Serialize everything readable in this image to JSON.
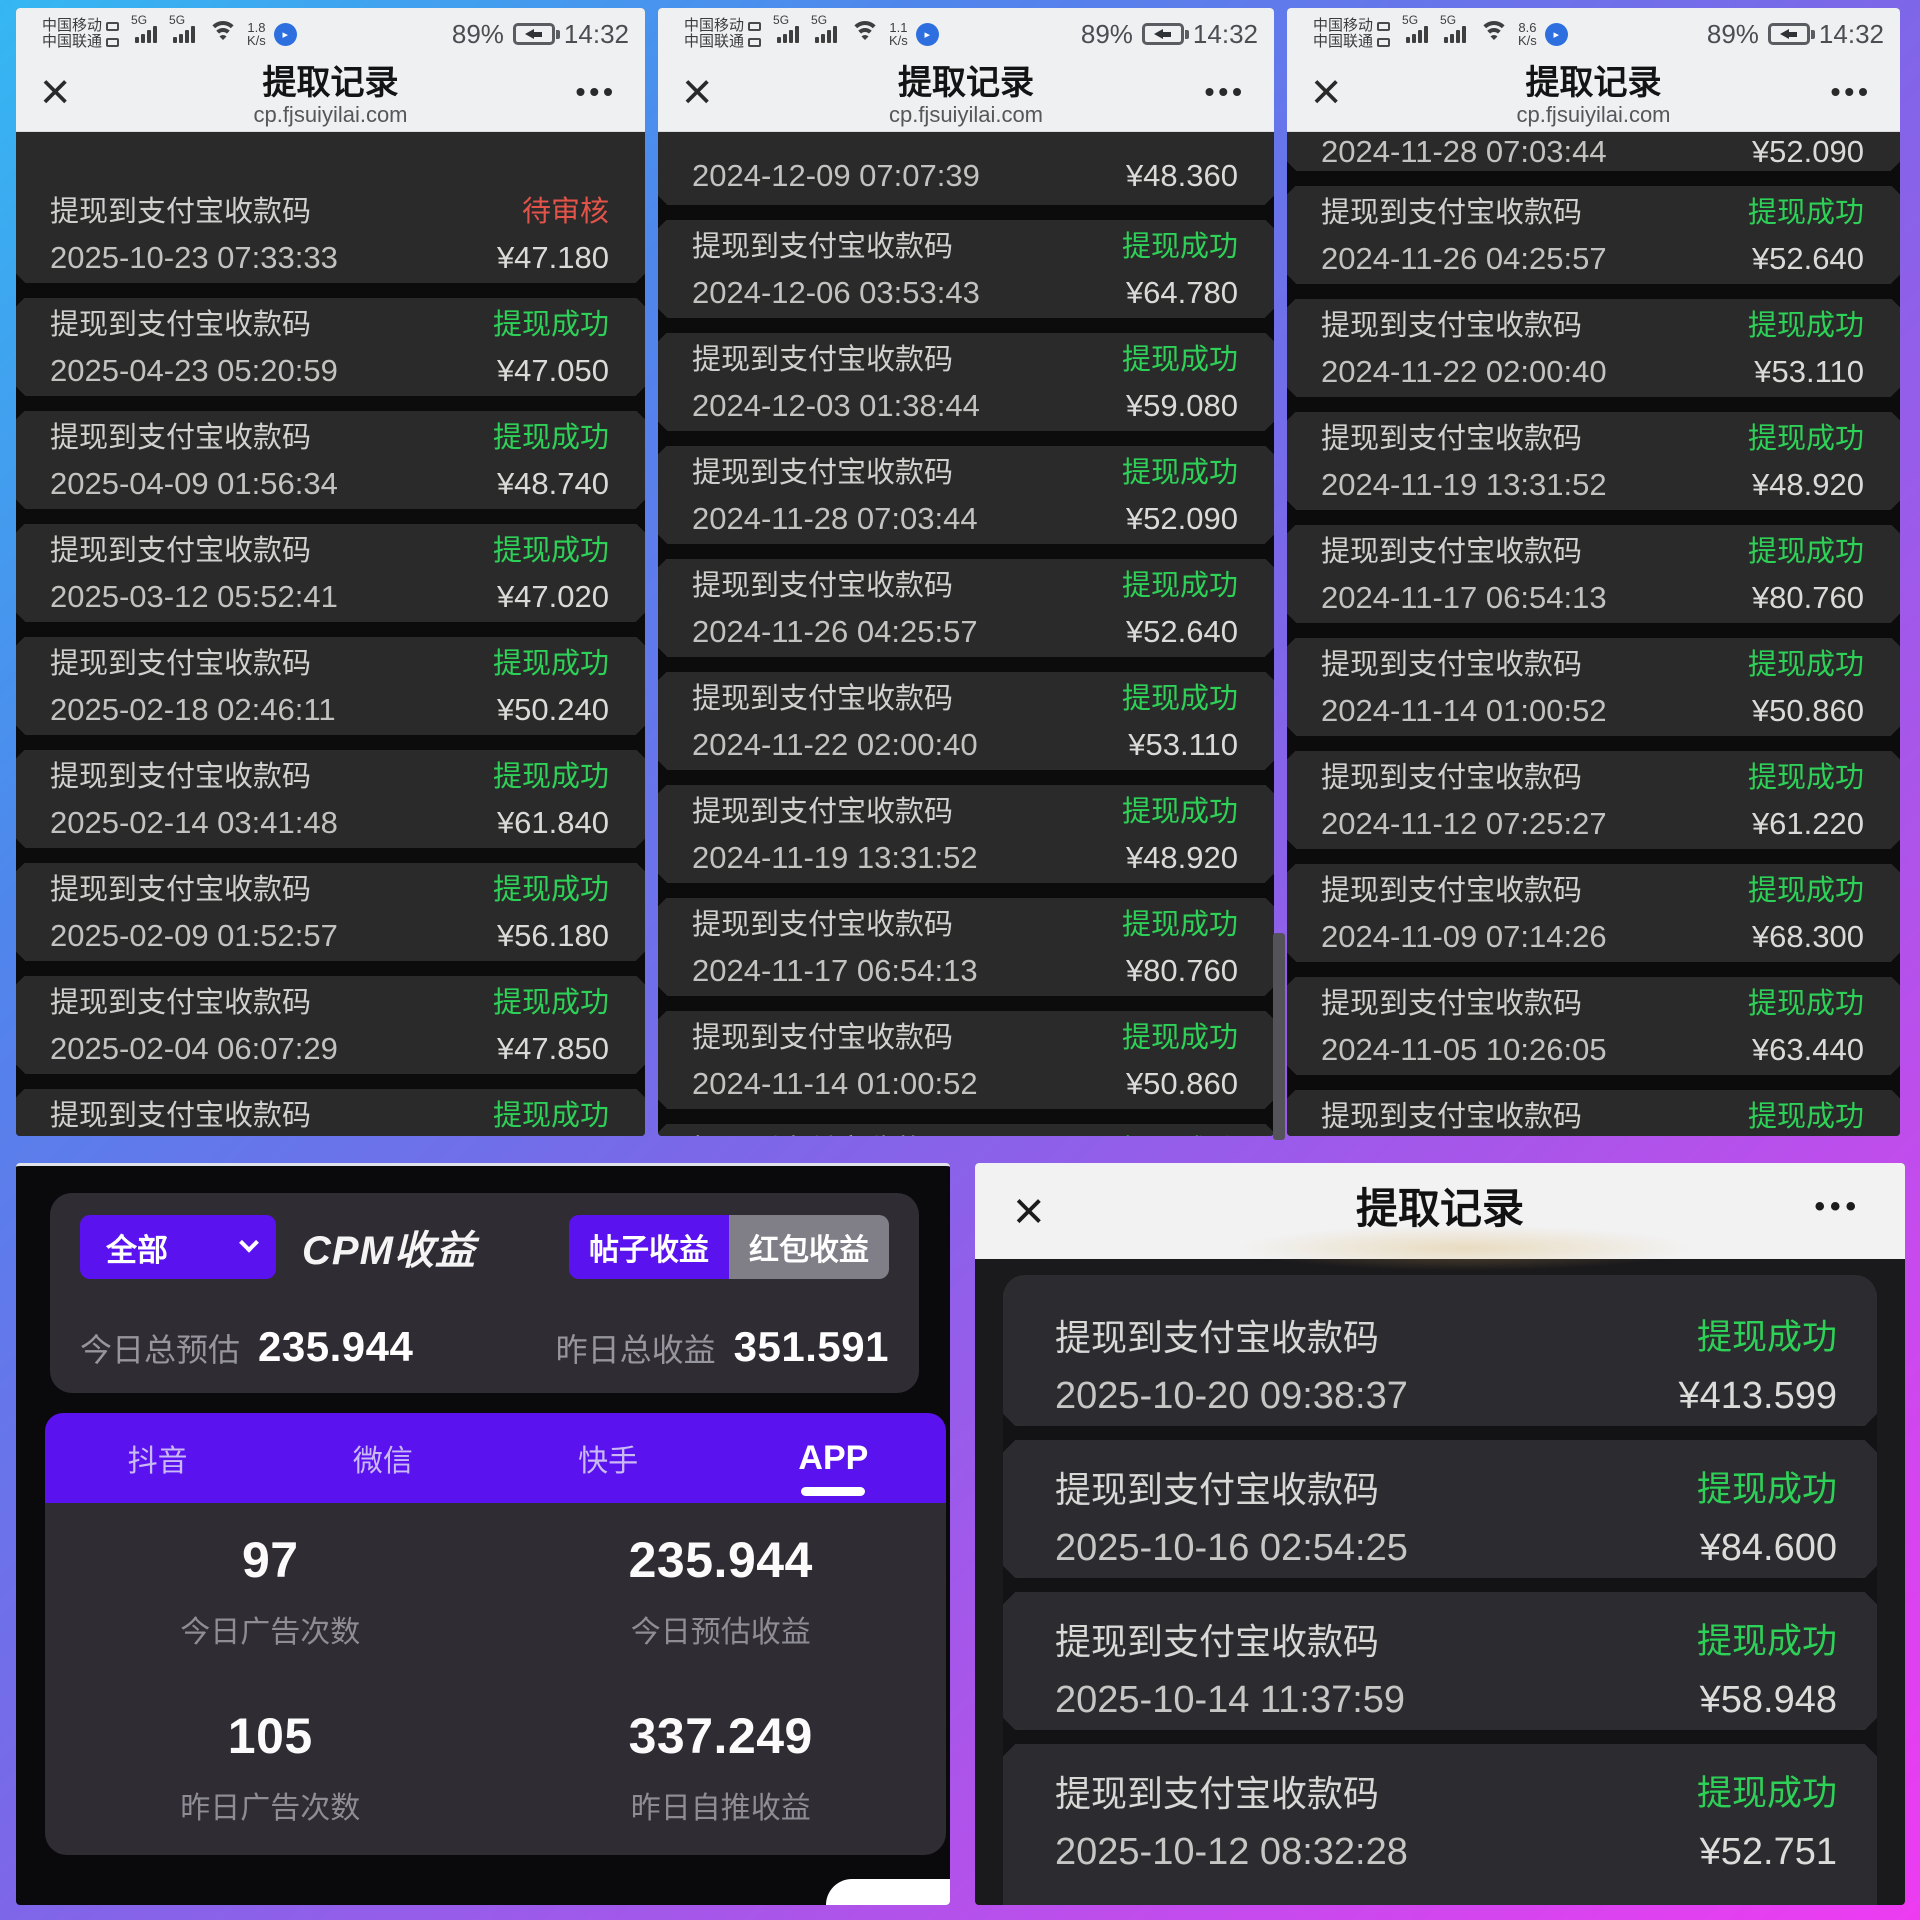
{
  "shared": {
    "carrier1": "中国移动",
    "carrier2": "中国联通",
    "network_badge": "5G",
    "speed_unit": "K/s",
    "battery_percent": "89%",
    "time": "14:32",
    "page_title": "提取记录",
    "page_url": "cp.fjsuiyilai.com",
    "row_title": "提现到支付宝收款码",
    "status_success": "提现成功",
    "status_pending": "待审核",
    "close_glyph": "×",
    "more_glyph": "•••"
  },
  "colors": {
    "accent_purple": "#5a13ef",
    "success_green": "#2ed157",
    "pending_red": "#e25349",
    "card_dark": "#2a2a2a"
  },
  "top_panels": [
    {
      "speed": "1.8",
      "rows": [
        {
          "date": "2025-10-23 07:33:33",
          "amount": "¥47.180",
          "status": "待审核",
          "state": "pending"
        },
        {
          "date": "2025-04-23 05:20:59",
          "amount": "¥47.050",
          "status": "提现成功",
          "state": "success"
        },
        {
          "date": "2025-04-09 01:56:34",
          "amount": "¥48.740",
          "status": "提现成功",
          "state": "success"
        },
        {
          "date": "2025-03-12 05:52:41",
          "amount": "¥47.020",
          "status": "提现成功",
          "state": "success"
        },
        {
          "date": "2025-02-18 02:46:11",
          "amount": "¥50.240",
          "status": "提现成功",
          "state": "success"
        },
        {
          "date": "2025-02-14 03:41:48",
          "amount": "¥61.840",
          "status": "提现成功",
          "state": "success"
        },
        {
          "date": "2025-02-09 01:52:57",
          "amount": "¥56.180",
          "status": "提现成功",
          "state": "success"
        },
        {
          "date": "2025-02-04 06:07:29",
          "amount": "¥47.850",
          "status": "提现成功",
          "state": "success"
        },
        {
          "date": "",
          "amount": "",
          "status": "提现成功",
          "state": "success",
          "clip": "bottom"
        }
      ]
    },
    {
      "speed": "1.1",
      "rows": [
        {
          "date": "2024-12-09 07:07:39",
          "amount": "¥48.360",
          "status": "提现成功",
          "state": "success",
          "clip": "top"
        },
        {
          "date": "2024-12-06 03:53:43",
          "amount": "¥64.780",
          "status": "提现成功",
          "state": "success"
        },
        {
          "date": "2024-12-03 01:38:44",
          "amount": "¥59.080",
          "status": "提现成功",
          "state": "success"
        },
        {
          "date": "2024-11-28 07:03:44",
          "amount": "¥52.090",
          "status": "提现成功",
          "state": "success"
        },
        {
          "date": "2024-11-26 04:25:57",
          "amount": "¥52.640",
          "status": "提现成功",
          "state": "success"
        },
        {
          "date": "2024-11-22 02:00:40",
          "amount": "¥53.110",
          "status": "提现成功",
          "state": "success"
        },
        {
          "date": "2024-11-19 13:31:52",
          "amount": "¥48.920",
          "status": "提现成功",
          "state": "success"
        },
        {
          "date": "2024-11-17 06:54:13",
          "amount": "¥80.760",
          "status": "提现成功",
          "state": "success"
        },
        {
          "date": "2024-11-14 01:00:52",
          "amount": "¥50.860",
          "status": "提现成功",
          "state": "success"
        },
        {
          "date": "",
          "amount": "",
          "status": "提现成功",
          "state": "success",
          "clip": "bottom"
        }
      ]
    },
    {
      "speed": "8.6",
      "rows": [
        {
          "date": "2024-11-28 07:03:44",
          "amount": "¥52.090",
          "status": "提现成功",
          "state": "success",
          "clip": "half"
        },
        {
          "date": "2024-11-26 04:25:57",
          "amount": "¥52.640",
          "status": "提现成功",
          "state": "success"
        },
        {
          "date": "2024-11-22 02:00:40",
          "amount": "¥53.110",
          "status": "提现成功",
          "state": "success"
        },
        {
          "date": "2024-11-19 13:31:52",
          "amount": "¥48.920",
          "status": "提现成功",
          "state": "success"
        },
        {
          "date": "2024-11-17 06:54:13",
          "amount": "¥80.760",
          "status": "提现成功",
          "state": "success"
        },
        {
          "date": "2024-11-14 01:00:52",
          "amount": "¥50.860",
          "status": "提现成功",
          "state": "success"
        },
        {
          "date": "2024-11-12 07:25:27",
          "amount": "¥61.220",
          "status": "提现成功",
          "state": "success"
        },
        {
          "date": "2024-11-09 07:14:26",
          "amount": "¥68.300",
          "status": "提现成功",
          "state": "success"
        },
        {
          "date": "2024-11-05 10:26:05",
          "amount": "¥63.440",
          "status": "提现成功",
          "state": "success"
        },
        {
          "date": "",
          "amount": "",
          "status": "提现成功",
          "state": "success",
          "clip": "bottom"
        }
      ]
    }
  ],
  "cpm_panel": {
    "filter": "全部",
    "title": "CPM收益",
    "seg_left": "帖子收益",
    "seg_right": "红包收益",
    "today_label": "今日总预估",
    "today_value": "235.944",
    "yday_label": "昨日总收益",
    "yday_value": "351.591",
    "tabs": [
      "抖音",
      "微信",
      "快手",
      "APP"
    ],
    "active_tab": "APP",
    "stats": [
      {
        "value": "97",
        "label": "今日广告次数"
      },
      {
        "value": "235.944",
        "label": "今日预估收益"
      },
      {
        "value": "105",
        "label": "昨日广告次数"
      },
      {
        "value": "337.249",
        "label": "昨日自推收益"
      }
    ]
  },
  "wd_panel": {
    "title": "提取记录",
    "rows": [
      {
        "date": "2025-10-20 09:38:37",
        "amount": "¥413.599",
        "status": "提现成功",
        "state": "success"
      },
      {
        "date": "2025-10-16 02:54:25",
        "amount": "¥84.600",
        "status": "提现成功",
        "state": "success"
      },
      {
        "date": "2025-10-14 11:37:59",
        "amount": "¥58.948",
        "status": "提现成功",
        "state": "success"
      },
      {
        "date": "2025-10-12 08:32:28",
        "amount": "¥52.751",
        "status": "提现成功",
        "state": "success"
      }
    ]
  }
}
